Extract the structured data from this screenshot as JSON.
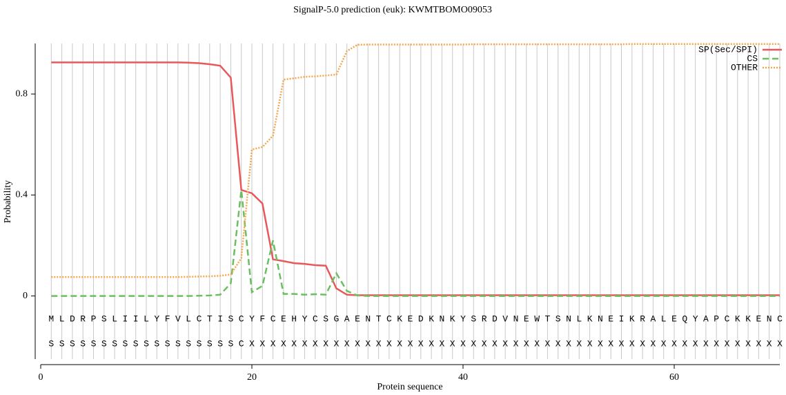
{
  "chart_data": {
    "type": "line",
    "title": "SignalP-5.0 prediction (euk):  KWMTBOMO09053",
    "x_label": "Protein sequence",
    "y_label": "Probability",
    "x": [
      1,
      2,
      3,
      4,
      5,
      6,
      7,
      8,
      9,
      10,
      11,
      12,
      13,
      14,
      15,
      16,
      17,
      18,
      19,
      20,
      21,
      22,
      23,
      24,
      25,
      26,
      27,
      28,
      29,
      30,
      31,
      32,
      33,
      34,
      35,
      36,
      37,
      38,
      39,
      40,
      41,
      42,
      43,
      44,
      45,
      46,
      47,
      48,
      49,
      50,
      51,
      52,
      53,
      54,
      55,
      56,
      57,
      58,
      59,
      60,
      61,
      62,
      63,
      64,
      65,
      66,
      67,
      68,
      69,
      70
    ],
    "sequence": [
      "M",
      "L",
      "D",
      "R",
      "P",
      "S",
      "L",
      "I",
      "I",
      "L",
      "Y",
      "F",
      "V",
      "L",
      "C",
      "T",
      "I",
      "S",
      "C",
      "Y",
      "F",
      "C",
      "E",
      "H",
      "Y",
      "C",
      "S",
      "G",
      "A",
      "E",
      "N",
      "T",
      "C",
      "K",
      "E",
      "D",
      "K",
      "N",
      "K",
      "Y",
      "S",
      "R",
      "D",
      "V",
      "N",
      "E",
      "W",
      "T",
      "S",
      "N",
      "L",
      "K",
      "N",
      "E",
      "I",
      "K",
      "R",
      "A",
      "L",
      "E",
      "Q",
      "Y",
      "A",
      "P",
      "C",
      "K",
      "K",
      "E",
      "N",
      "C"
    ],
    "annotation": [
      "S",
      "S",
      "S",
      "S",
      "S",
      "S",
      "S",
      "S",
      "S",
      "S",
      "S",
      "S",
      "S",
      "S",
      "S",
      "S",
      "S",
      "S",
      "C",
      "X",
      "X",
      "X",
      "X",
      "X",
      "X",
      "X",
      "X",
      "X",
      "X",
      "X",
      "X",
      "X",
      "X",
      "X",
      "X",
      "X",
      "X",
      "X",
      "X",
      "X",
      "X",
      "X",
      "X",
      "X",
      "X",
      "X",
      "X",
      "X",
      "X",
      "X",
      "X",
      "X",
      "X",
      "X",
      "X",
      "X",
      "X",
      "X",
      "X",
      "X",
      "X",
      "X",
      "X",
      "X",
      "X",
      "X",
      "X",
      "X",
      "X",
      "X"
    ],
    "series": [
      {
        "name": "SP(Sec/SPI)",
        "color": "#e8575a",
        "dash": "solid",
        "values": [
          0.925,
          0.925,
          0.925,
          0.925,
          0.925,
          0.925,
          0.925,
          0.925,
          0.925,
          0.925,
          0.925,
          0.925,
          0.925,
          0.924,
          0.922,
          0.918,
          0.912,
          0.865,
          0.42,
          0.407,
          0.366,
          0.145,
          0.138,
          0.13,
          0.127,
          0.122,
          0.12,
          0.03,
          0.005,
          0.003,
          0.003,
          0.003,
          0.003,
          0.003,
          0.003,
          0.003,
          0.003,
          0.003,
          0.003,
          0.003,
          0.003,
          0.003,
          0.003,
          0.003,
          0.003,
          0.003,
          0.003,
          0.003,
          0.003,
          0.003,
          0.003,
          0.003,
          0.003,
          0.003,
          0.003,
          0.003,
          0.003,
          0.003,
          0.003,
          0.003,
          0.003,
          0.003,
          0.003,
          0.003,
          0.003,
          0.003,
          0.003,
          0.003,
          0.003,
          0.003
        ]
      },
      {
        "name": "CS",
        "color": "#6abf5e",
        "dash": "dashed",
        "values": [
          0,
          0,
          0,
          0,
          0,
          0,
          0,
          0,
          0,
          0,
          0,
          0,
          0,
          0,
          0.001,
          0.002,
          0.005,
          0.05,
          0.42,
          0.015,
          0.04,
          0.22,
          0.008,
          0.008,
          0.005,
          0.007,
          0.005,
          0.09,
          0.02,
          0.002,
          0,
          0,
          0,
          0,
          0,
          0,
          0,
          0,
          0,
          0,
          0,
          0,
          0,
          0,
          0,
          0,
          0,
          0,
          0,
          0,
          0,
          0,
          0,
          0,
          0,
          0,
          0,
          0,
          0,
          0,
          0,
          0,
          0,
          0,
          0,
          0,
          0,
          0,
          0,
          0
        ]
      },
      {
        "name": "OTHER",
        "color": "#f5a54a",
        "dash": "dotted",
        "values": [
          0.075,
          0.075,
          0.075,
          0.075,
          0.075,
          0.075,
          0.075,
          0.075,
          0.075,
          0.075,
          0.075,
          0.075,
          0.075,
          0.076,
          0.077,
          0.078,
          0.08,
          0.085,
          0.15,
          0.58,
          0.59,
          0.635,
          0.857,
          0.862,
          0.868,
          0.87,
          0.873,
          0.877,
          0.97,
          0.995,
          0.996,
          0.996,
          0.996,
          0.996,
          0.996,
          0.996,
          0.996,
          0.996,
          0.996,
          0.996,
          0.997,
          0.997,
          0.997,
          0.997,
          0.997,
          0.997,
          0.997,
          0.997,
          0.997,
          0.997,
          0.997,
          0.997,
          0.997,
          0.997,
          0.997,
          0.998,
          0.998,
          0.998,
          0.998,
          0.998,
          0.998,
          0.998,
          0.998,
          0.998,
          0.998,
          0.998,
          0.998,
          0.998,
          0.998,
          0.998
        ]
      }
    ],
    "xlim": [
      0,
      70
    ],
    "xticks": [
      0,
      20,
      40,
      60
    ],
    "ylim": [
      -0.25,
      1.0
    ],
    "yticks": [
      0,
      0.4,
      0.8
    ],
    "grid": true,
    "legend": "upper right"
  }
}
